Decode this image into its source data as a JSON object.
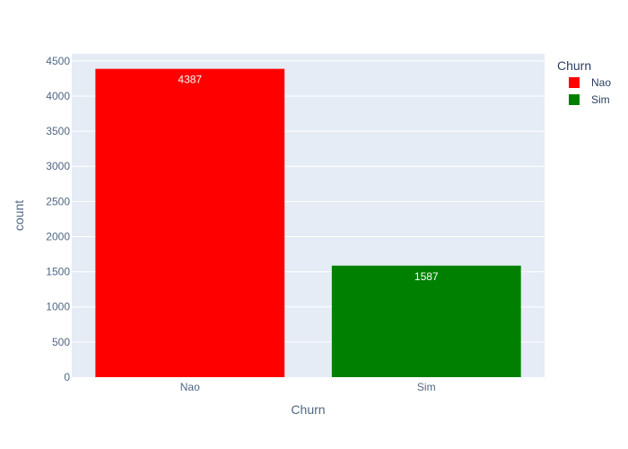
{
  "chart_data": {
    "type": "bar",
    "categories": [
      "Nao",
      "Sim"
    ],
    "values": [
      4387,
      1587
    ],
    "colors": [
      "#ff0000",
      "#008000"
    ],
    "data_labels": [
      "4387",
      "1587"
    ],
    "xlabel": "Churn",
    "ylabel": "count",
    "ylim": [
      0,
      4600
    ],
    "yticks": [
      0,
      500,
      1000,
      1500,
      2000,
      2500,
      3000,
      3500,
      4000,
      4500
    ],
    "grid": true,
    "plot_background": "#e5ecf6",
    "legend": {
      "title": "Churn",
      "placement": "top-right",
      "entries": [
        {
          "label": "Nao",
          "color": "#ff0000"
        },
        {
          "label": "Sim",
          "color": "#008000"
        }
      ]
    }
  }
}
